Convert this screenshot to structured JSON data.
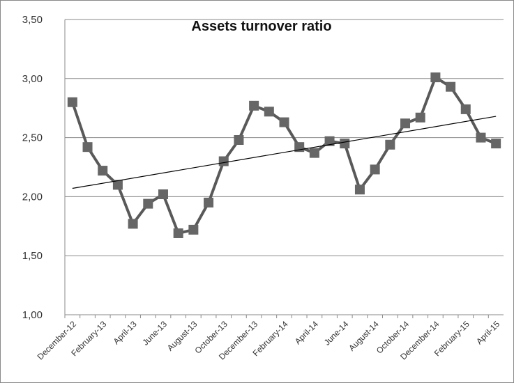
{
  "chart_data": {
    "type": "line",
    "title": "Assets turnover ratio",
    "categories": [
      "December-12",
      null,
      "February-13",
      null,
      "April-13",
      null,
      "June-13",
      null,
      "August-13",
      null,
      "October-13",
      null,
      "December-13",
      null,
      "February-14",
      null,
      "April-14",
      null,
      "June-14",
      null,
      "August-14",
      null,
      "October-14",
      null,
      "December-14",
      null,
      "February-15",
      null,
      "April-15"
    ],
    "series": [
      {
        "color": "#595959",
        "values": [
          2.8,
          2.42,
          2.22,
          2.1,
          1.77,
          1.94,
          2.02,
          1.69,
          1.72,
          1.95,
          2.3,
          2.48,
          2.77,
          2.72,
          2.63,
          2.42,
          2.37,
          2.47,
          2.45,
          2.06,
          2.23,
          2.44,
          2.62,
          2.67,
          3.01,
          2.93,
          2.74,
          2.5,
          2.45
        ]
      }
    ],
    "trendline": [
      2.07,
      2.68
    ],
    "ylim": [
      1.0,
      3.5
    ],
    "yticks": [
      {
        "value": 1.0,
        "label": "1,00"
      },
      {
        "value": 1.5,
        "label": "1,50"
      },
      {
        "value": 2.0,
        "label": "2,00"
      },
      {
        "value": 2.5,
        "label": "2,50"
      },
      {
        "value": 3.0,
        "label": "3,00"
      },
      {
        "value": 3.5,
        "label": "3,50"
      }
    ],
    "grid": true
  }
}
